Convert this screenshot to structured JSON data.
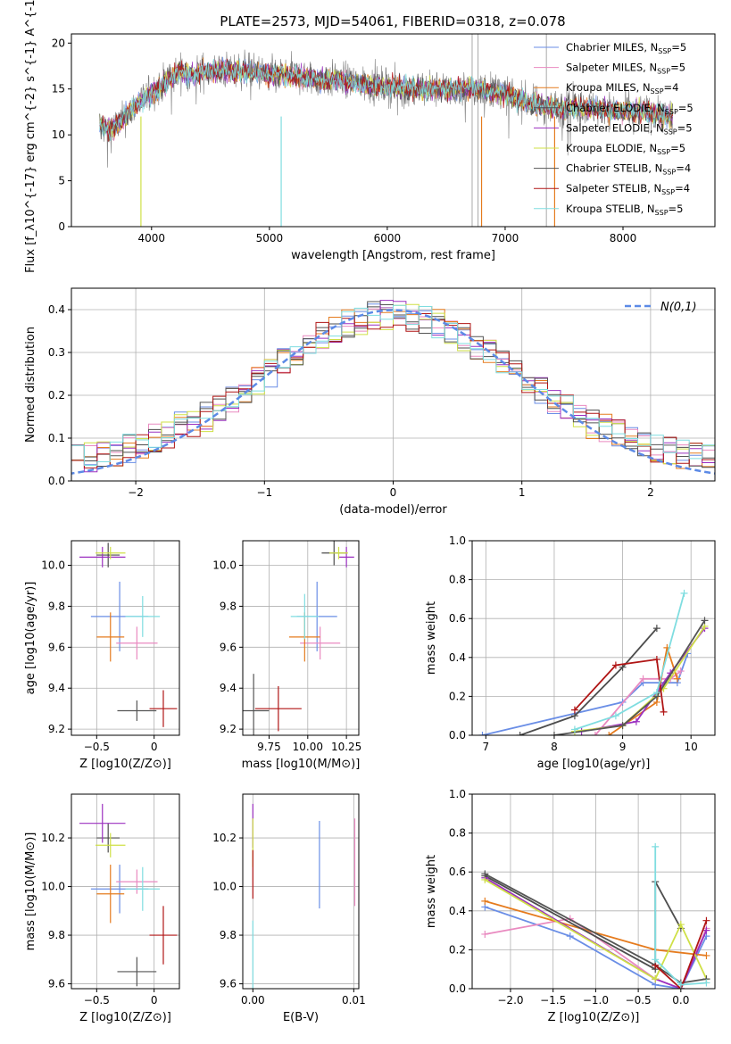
{
  "title": "PLATE=2573, MJD=54061, FIBERID=0318, z=0.078",
  "series_colors": [
    "#6a8ee6",
    "#e98ac0",
    "#e57b1e",
    "#4d4d4d",
    "#9b30c0",
    "#cfe046",
    "#555555",
    "#b01515",
    "#7fdde0"
  ],
  "chart_data": [
    {
      "id": "spectrum",
      "type": "line",
      "xlabel": "wavelength [Angstrom, rest frame]",
      "ylabel": "Flux [f_λ10^{-17} erg cm^{-2} s^{-1} A^{-1}]",
      "xlim": [
        3320,
        8780
      ],
      "ylim": [
        0,
        21
      ],
      "xticks": [
        4000,
        5000,
        6000,
        7000,
        8000
      ],
      "yticks": [
        0,
        5,
        10,
        15,
        20
      ],
      "grid": false,
      "legend_position": "top-right",
      "legend": [
        {
          "name": "Chabrier MILES, N",
          "nssp": "=5",
          "color": "#6a8ee6"
        },
        {
          "name": "Salpeter MILES, N",
          "nssp": "=5",
          "color": "#e98ac0"
        },
        {
          "name": "Kroupa MILES, N",
          "nssp": "=4",
          "color": "#e57b1e"
        },
        {
          "name": "Chabrier ELODIE, N",
          "nssp": "=5",
          "color": "#4d4d4d"
        },
        {
          "name": "Salpeter ELODIE, N",
          "nssp": "=5",
          "color": "#9b30c0"
        },
        {
          "name": "Kroupa ELODIE, N",
          "nssp": "=5",
          "color": "#cfe046"
        },
        {
          "name": "Chabrier STELIB, N",
          "nssp": "=4",
          "color": "#555555"
        },
        {
          "name": "Salpeter STELIB, N",
          "nssp": "=4",
          "color": "#b01515"
        },
        {
          "name": "Kroupa STELIB, N",
          "nssp": "=5",
          "color": "#7fdde0"
        }
      ],
      "continuum": [
        [
          3570,
          11
        ],
        [
          3650,
          10.5
        ],
        [
          3750,
          11.5
        ],
        [
          3850,
          13
        ],
        [
          3950,
          14
        ],
        [
          4050,
          15
        ],
        [
          4150,
          16
        ],
        [
          4250,
          17
        ],
        [
          4350,
          16.5
        ],
        [
          4450,
          17
        ],
        [
          4600,
          17
        ],
        [
          4800,
          17
        ],
        [
          5000,
          16.5
        ],
        [
          5200,
          16.5
        ],
        [
          5400,
          16
        ],
        [
          5600,
          16
        ],
        [
          5800,
          15.5
        ],
        [
          6000,
          15.3
        ],
        [
          6200,
          15
        ],
        [
          6400,
          15
        ],
        [
          6600,
          15
        ],
        [
          6800,
          15
        ],
        [
          7000,
          14.5
        ],
        [
          7200,
          13.5
        ],
        [
          7400,
          13
        ],
        [
          7600,
          13
        ],
        [
          7800,
          12.8
        ],
        [
          8000,
          12.5
        ],
        [
          8200,
          12.5
        ],
        [
          8400,
          12
        ]
      ]
    },
    {
      "id": "residuals",
      "type": "histogram",
      "xlabel": "(data-model)/error",
      "ylabel": "Normed distribution",
      "xlim": [
        -2.5,
        2.5
      ],
      "ylim": [
        0,
        0.45
      ],
      "xticks": [
        -2,
        -1,
        0,
        1,
        2
      ],
      "yticks": [
        0.0,
        0.1,
        0.2,
        0.3,
        0.4
      ],
      "grid": true,
      "legend_position": "top-right",
      "reference_label": "N(0,1)",
      "reference_color": "#5c8ae6"
    },
    {
      "id": "age-vs-Z",
      "type": "errorbar",
      "xlabel": "Z [log10(Z/Z⊙)]",
      "ylabel": "age [log10(age/yr)]",
      "xlim": [
        -0.72,
        0.22
      ],
      "ylim": [
        9.17,
        10.12
      ],
      "xticks": [
        -0.5,
        0.0
      ],
      "yticks": [
        9.2,
        9.4,
        9.6,
        9.8,
        10.0
      ],
      "grid": true,
      "points": [
        {
          "x": -0.3,
          "xerr": 0.25,
          "y": 9.75,
          "yerr": 0.17,
          "color": "#6a8ee6"
        },
        {
          "x": -0.15,
          "xerr": 0.18,
          "y": 9.62,
          "yerr": 0.08,
          "color": "#e98ac0"
        },
        {
          "x": -0.38,
          "xerr": 0.12,
          "y": 9.65,
          "yerr": 0.12,
          "color": "#e57b1e"
        },
        {
          "x": -0.4,
          "xerr": 0.1,
          "y": 10.05,
          "yerr": 0.06,
          "color": "#4d4d4d"
        },
        {
          "x": -0.45,
          "xerr": 0.2,
          "y": 10.04,
          "yerr": 0.05,
          "color": "#9b30c0"
        },
        {
          "x": -0.38,
          "xerr": 0.13,
          "y": 10.06,
          "yerr": 0.03,
          "color": "#cfe046"
        },
        {
          "x": -0.15,
          "xerr": 0.17,
          "y": 9.29,
          "yerr": 0.05,
          "color": "#555555"
        },
        {
          "x": 0.08,
          "xerr": 0.12,
          "y": 9.3,
          "yerr": 0.09,
          "color": "#b01515"
        },
        {
          "x": -0.1,
          "xerr": 0.15,
          "y": 9.75,
          "yerr": 0.1,
          "color": "#7fdde0"
        }
      ]
    },
    {
      "id": "age-vs-mass",
      "type": "errorbar",
      "xlabel": "mass [log10(M/M⊙)]",
      "ylabel": "",
      "xlim": [
        9.58,
        10.33
      ],
      "ylim": [
        9.17,
        10.12
      ],
      "xticks": [
        9.75,
        10.0,
        10.25
      ],
      "xticklabels": [
        "9.75",
        "10.00",
        "10.25"
      ],
      "yticks": [
        9.2,
        9.4,
        9.6,
        9.8,
        10.0
      ],
      "grid": true,
      "points": [
        {
          "x": 10.06,
          "xerr": 0.13,
          "y": 9.75,
          "yerr": 0.17,
          "color": "#6a8ee6"
        },
        {
          "x": 10.08,
          "xerr": 0.13,
          "y": 9.62,
          "yerr": 0.08,
          "color": "#e98ac0"
        },
        {
          "x": 9.98,
          "xerr": 0.1,
          "y": 9.65,
          "yerr": 0.12,
          "color": "#e57b1e"
        },
        {
          "x": 10.17,
          "xerr": 0.08,
          "y": 10.06,
          "yerr": 0.06,
          "color": "#4d4d4d"
        },
        {
          "x": 10.25,
          "xerr": 0.05,
          "y": 10.04,
          "yerr": 0.05,
          "color": "#9b30c0"
        },
        {
          "x": 10.2,
          "xerr": 0.06,
          "y": 10.06,
          "yerr": 0.03,
          "color": "#cfe046"
        },
        {
          "x": 9.65,
          "xerr": 0.1,
          "y": 9.29,
          "yerr": 0.18,
          "color": "#555555"
        },
        {
          "x": 9.81,
          "xerr": 0.15,
          "y": 9.3,
          "yerr": 0.11,
          "color": "#b01515"
        },
        {
          "x": 9.98,
          "xerr": 0.09,
          "y": 9.75,
          "yerr": 0.11,
          "color": "#7fdde0"
        }
      ]
    },
    {
      "id": "weights-vs-age",
      "type": "line",
      "xlabel": "age [log10(age/yr)]",
      "ylabel": "mass weight",
      "xlim": [
        6.8,
        10.35
      ],
      "ylim": [
        0,
        1
      ],
      "xticks": [
        7,
        8,
        9,
        10
      ],
      "yticks": [
        0.0,
        0.2,
        0.4,
        0.6,
        0.8,
        1.0
      ],
      "grid": true,
      "series": [
        {
          "color": "#6a8ee6",
          "points": [
            [
              6.95,
              0.0
            ],
            [
              9.0,
              0.17
            ],
            [
              9.3,
              0.27
            ],
            [
              9.8,
              0.27
            ],
            [
              9.95,
              0.42
            ]
          ]
        },
        {
          "color": "#e98ac0",
          "points": [
            [
              8.6,
              0.0
            ],
            [
              9.3,
              0.29
            ],
            [
              9.7,
              0.29
            ],
            [
              9.85,
              0.33
            ]
          ]
        },
        {
          "color": "#e57b1e",
          "points": [
            [
              8.8,
              0.0
            ],
            [
              9.5,
              0.17
            ],
            [
              9.65,
              0.45
            ],
            [
              9.8,
              0.29
            ]
          ]
        },
        {
          "color": "#4d4d4d",
          "points": [
            [
              7.5,
              0.0
            ],
            [
              8.3,
              0.1
            ],
            [
              9.0,
              0.35
            ],
            [
              9.5,
              0.55
            ]
          ]
        },
        {
          "color": "#9b30c0",
          "points": [
            [
              8.4,
              0.02
            ],
            [
              9.2,
              0.07
            ],
            [
              9.7,
              0.32
            ],
            [
              10.2,
              0.55
            ]
          ]
        },
        {
          "color": "#cfe046",
          "points": [
            [
              8.3,
              0.02
            ],
            [
              9.0,
              0.05
            ],
            [
              9.6,
              0.24
            ],
            [
              10.2,
              0.56
            ]
          ]
        },
        {
          "color": "#555555",
          "points": [
            [
              8.0,
              0.0
            ],
            [
              9.0,
              0.05
            ],
            [
              9.5,
              0.2
            ],
            [
              10.2,
              0.59
            ]
          ]
        },
        {
          "color": "#b01515",
          "points": [
            [
              8.3,
              0.13
            ],
            [
              8.9,
              0.36
            ],
            [
              9.5,
              0.39
            ],
            [
              9.6,
              0.12
            ]
          ]
        },
        {
          "color": "#7fdde0",
          "points": [
            [
              8.3,
              0.03
            ],
            [
              8.9,
              0.1
            ],
            [
              9.5,
              0.22
            ],
            [
              9.9,
              0.73
            ]
          ]
        }
      ]
    },
    {
      "id": "mass-vs-Z",
      "type": "errorbar",
      "xlabel": "Z [log10(Z/Z⊙)]",
      "ylabel": "mass [log10(M/M⊙)]",
      "xlim": [
        -0.72,
        0.22
      ],
      "ylim": [
        9.58,
        10.38
      ],
      "xticks": [
        -0.5,
        0.0
      ],
      "yticks": [
        9.6,
        9.8,
        10.0,
        10.2
      ],
      "grid": true,
      "points": [
        {
          "x": -0.3,
          "xerr": 0.25,
          "y": 9.99,
          "yerr": 0.1,
          "color": "#6a8ee6"
        },
        {
          "x": -0.15,
          "xerr": 0.18,
          "y": 10.02,
          "yerr": 0.05,
          "color": "#e98ac0"
        },
        {
          "x": -0.38,
          "xerr": 0.12,
          "y": 9.97,
          "yerr": 0.12,
          "color": "#e57b1e"
        },
        {
          "x": -0.4,
          "xerr": 0.1,
          "y": 10.2,
          "yerr": 0.06,
          "color": "#4d4d4d"
        },
        {
          "x": -0.45,
          "xerr": 0.2,
          "y": 10.26,
          "yerr": 0.08,
          "color": "#9b30c0"
        },
        {
          "x": -0.38,
          "xerr": 0.13,
          "y": 10.17,
          "yerr": 0.05,
          "color": "#cfe046"
        },
        {
          "x": -0.15,
          "xerr": 0.17,
          "y": 9.65,
          "yerr": 0.06,
          "color": "#555555"
        },
        {
          "x": 0.08,
          "xerr": 0.12,
          "y": 9.8,
          "yerr": 0.12,
          "color": "#b01515"
        },
        {
          "x": -0.1,
          "xerr": 0.15,
          "y": 9.99,
          "yerr": 0.09,
          "color": "#7fdde0"
        }
      ]
    },
    {
      "id": "mass-vs-ebv",
      "type": "errorbar",
      "xlabel": "E(B-V)",
      "ylabel": "",
      "xlim": [
        -0.001,
        0.0105
      ],
      "ylim": [
        9.58,
        10.38
      ],
      "xticks": [
        0.0,
        0.01
      ],
      "xticklabels": [
        "0.00",
        "0.01"
      ],
      "yticks": [
        9.6,
        9.8,
        10.0,
        10.2
      ],
      "grid": true,
      "points": [
        {
          "x": 0.0066,
          "xerr": 0,
          "y": 10.09,
          "yerr": 0.18,
          "color": "#6a8ee6"
        },
        {
          "x": 0.0101,
          "xerr": 0,
          "y": 10.1,
          "yerr": 0.18,
          "color": "#e98ac0"
        },
        {
          "x": 0.0,
          "xerr": 0,
          "y": 10.25,
          "yerr": 0.09,
          "color": "#9b30c0"
        },
        {
          "x": 0.0,
          "xerr": 0,
          "y": 10.18,
          "yerr": 0.1,
          "color": "#cfe046"
        },
        {
          "x": 0.0,
          "xerr": 0,
          "y": 10.05,
          "yerr": 0.1,
          "color": "#b01515"
        },
        {
          "x": 0.0,
          "xerr": 0,
          "y": 9.72,
          "yerr": 0.14,
          "color": "#7fdde0"
        }
      ]
    },
    {
      "id": "weights-vs-Z",
      "type": "line",
      "xlabel": "Z [log10(Z/Z⊙)]",
      "ylabel": "mass weight",
      "xlim": [
        -2.45,
        0.4
      ],
      "ylim": [
        0,
        1
      ],
      "xticks": [
        -2.0,
        -1.5,
        -1.0,
        -0.5,
        0.0
      ],
      "xticklabels": [
        "−2.0",
        "−1.5",
        "−1.0",
        "−0.5",
        "0.0"
      ],
      "yticks": [
        0.0,
        0.2,
        0.4,
        0.6,
        0.8,
        1.0
      ],
      "grid": true,
      "series": [
        {
          "color": "#6a8ee6",
          "points": [
            [
              -2.3,
              0.42
            ],
            [
              -1.3,
              0.27
            ],
            [
              -0.3,
              0.02
            ],
            [
              0.0,
              0.0
            ],
            [
              0.3,
              0.27
            ]
          ]
        },
        {
          "color": "#e98ac0",
          "points": [
            [
              -2.3,
              0.28
            ],
            [
              -1.3,
              0.36
            ],
            [
              -0.3,
              0.05
            ],
            [
              0.0,
              0.0
            ],
            [
              0.3,
              0.31
            ]
          ]
        },
        {
          "color": "#e57b1e",
          "points": [
            [
              -2.3,
              0.45
            ],
            [
              -0.3,
              0.2
            ],
            [
              0.3,
              0.17
            ]
          ]
        },
        {
          "color": "#4d4d4d",
          "points": [
            [
              -2.3,
              0.58
            ],
            [
              -0.3,
              0.1
            ],
            [
              -0.3,
              0.55
            ],
            [
              0.0,
              0.31
            ]
          ]
        },
        {
          "color": "#9b30c0",
          "points": [
            [
              -2.3,
              0.57
            ],
            [
              -0.3,
              0.05
            ],
            [
              0.0,
              0.0
            ],
            [
              0.3,
              0.3
            ]
          ]
        },
        {
          "color": "#cfe046",
          "points": [
            [
              -2.3,
              0.56
            ],
            [
              -0.3,
              0.05
            ],
            [
              0.0,
              0.33
            ],
            [
              0.3,
              0.05
            ]
          ]
        },
        {
          "color": "#555555",
          "points": [
            [
              -2.3,
              0.59
            ],
            [
              -0.3,
              0.12
            ],
            [
              0.0,
              0.03
            ],
            [
              0.3,
              0.05
            ]
          ]
        },
        {
          "color": "#b01515",
          "points": [
            [
              -0.3,
              0.12
            ],
            [
              0.0,
              0.0
            ],
            [
              0.3,
              0.35
            ]
          ]
        },
        {
          "color": "#7fdde0",
          "points": [
            [
              -0.3,
              0.73
            ],
            [
              -0.3,
              0.15
            ],
            [
              0.0,
              0.02
            ],
            [
              0.3,
              0.03
            ]
          ]
        }
      ]
    }
  ]
}
